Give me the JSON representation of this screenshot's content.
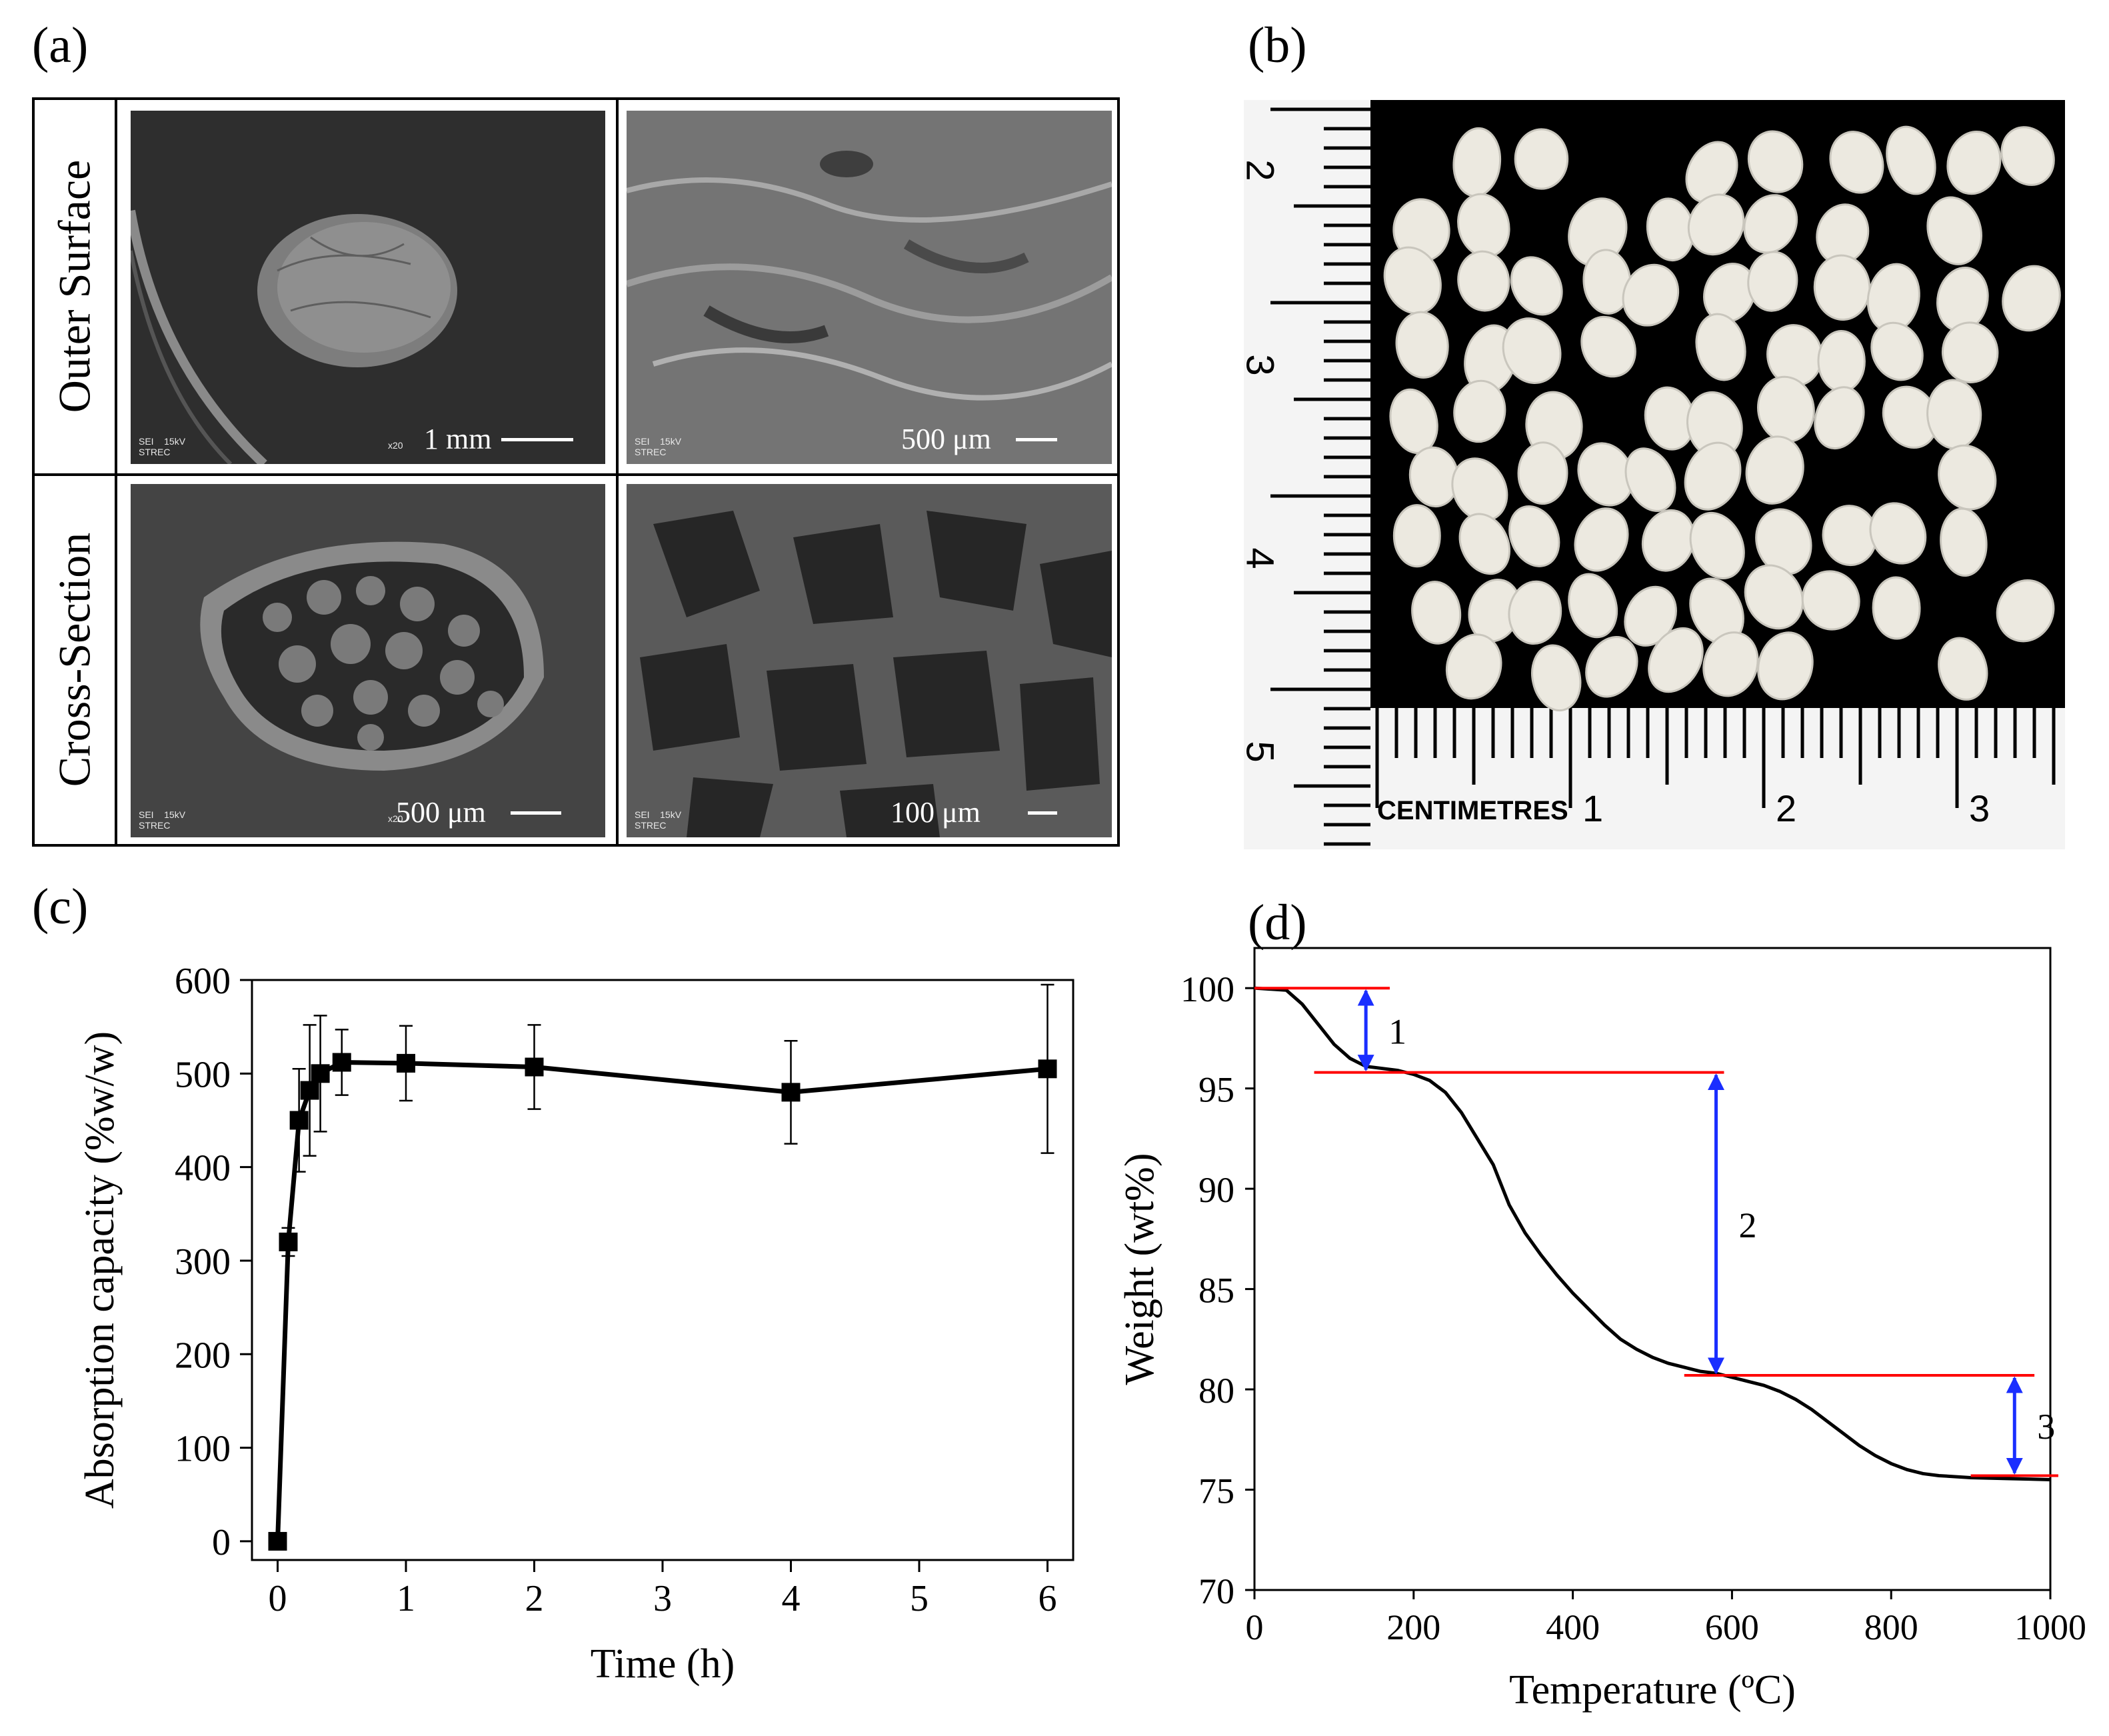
{
  "panels": {
    "a": {
      "letter": "(a)",
      "rows": [
        {
          "label": "Outer Surface",
          "cells": [
            {
              "scale_text": "1 mm",
              "mag": "x20",
              "foot": "SEI    15kV\nSTREC"
            },
            {
              "scale_text": "500 μm",
              "mag": "",
              "foot": "SEI    15kV\nSTREC"
            }
          ]
        },
        {
          "label": "Cross-Section",
          "cells": [
            {
              "scale_text": "500 μm",
              "mag": "x20",
              "foot": "SEI    15kV\nSTREC"
            },
            {
              "scale_text": "100 μm",
              "mag": "",
              "foot": "SEI    15kV\nSTREC"
            }
          ]
        }
      ]
    },
    "b": {
      "letter": "(b)",
      "ruler": {
        "vertical_numbers": [
          "2",
          "3",
          "4",
          "5"
        ],
        "horizontal_label": "CENTIMETRES",
        "horizontal_numbers": [
          "1",
          "2",
          "3"
        ]
      }
    },
    "c": {
      "letter": "(c)"
    },
    "d": {
      "letter": "(d)"
    }
  },
  "chart_data": [
    {
      "panel": "c",
      "type": "line",
      "xlabel": "Time (h)",
      "ylabel": "Absorption capacity (%w/w)",
      "xlim": [
        -0.2,
        6.2
      ],
      "ylim": [
        -20,
        600
      ],
      "xticks": [
        0,
        1,
        2,
        3,
        4,
        5,
        6
      ],
      "yticks": [
        0,
        100,
        200,
        300,
        400,
        500,
        600
      ],
      "marker": "square",
      "color": "#000000",
      "points": [
        {
          "x": 0,
          "y": 0,
          "err": 0
        },
        {
          "x": 0.083,
          "y": 320,
          "err": 15
        },
        {
          "x": 0.167,
          "y": 450,
          "err": 55
        },
        {
          "x": 0.25,
          "y": 482,
          "err": 70
        },
        {
          "x": 0.333,
          "y": 500,
          "err": 62
        },
        {
          "x": 0.5,
          "y": 512,
          "err": 35
        },
        {
          "x": 1,
          "y": 511,
          "err": 40
        },
        {
          "x": 2,
          "y": 507,
          "err": 45
        },
        {
          "x": 4,
          "y": 480,
          "err": 55
        },
        {
          "x": 6,
          "y": 505,
          "err": 90
        }
      ]
    },
    {
      "panel": "d",
      "type": "line",
      "xlabel": "Temperature (ºC)",
      "ylabel": "Weight (wt%)",
      "xlim": [
        0,
        1000
      ],
      "ylim": [
        70,
        102
      ],
      "xticks": [
        0,
        200,
        400,
        600,
        800,
        1000
      ],
      "yticks": [
        70,
        75,
        80,
        85,
        90,
        95,
        100
      ],
      "color": "#000000",
      "curve": [
        [
          0,
          100
        ],
        [
          40,
          99.9
        ],
        [
          60,
          99.2
        ],
        [
          80,
          98.2
        ],
        [
          100,
          97.2
        ],
        [
          120,
          96.5
        ],
        [
          140,
          96.1
        ],
        [
          160,
          96.0
        ],
        [
          180,
          95.9
        ],
        [
          200,
          95.7
        ],
        [
          220,
          95.4
        ],
        [
          240,
          94.8
        ],
        [
          260,
          93.8
        ],
        [
          280,
          92.5
        ],
        [
          300,
          91.2
        ],
        [
          320,
          89.2
        ],
        [
          340,
          87.8
        ],
        [
          360,
          86.7
        ],
        [
          380,
          85.7
        ],
        [
          400,
          84.8
        ],
        [
          420,
          84.0
        ],
        [
          440,
          83.2
        ],
        [
          460,
          82.5
        ],
        [
          480,
          82.0
        ],
        [
          500,
          81.6
        ],
        [
          520,
          81.3
        ],
        [
          540,
          81.1
        ],
        [
          560,
          80.9
        ],
        [
          580,
          80.8
        ],
        [
          600,
          80.6
        ],
        [
          620,
          80.4
        ],
        [
          640,
          80.2
        ],
        [
          660,
          79.9
        ],
        [
          680,
          79.5
        ],
        [
          700,
          79.0
        ],
        [
          720,
          78.4
        ],
        [
          740,
          77.8
        ],
        [
          760,
          77.2
        ],
        [
          780,
          76.7
        ],
        [
          800,
          76.3
        ],
        [
          820,
          76.0
        ],
        [
          840,
          75.8
        ],
        [
          860,
          75.7
        ],
        [
          900,
          75.6
        ],
        [
          950,
          75.55
        ],
        [
          1000,
          75.5
        ]
      ],
      "reference_lines": [
        {
          "y": 100.0,
          "x_from": 0,
          "x_to": 170
        },
        {
          "y": 95.8,
          "x_from": 75,
          "x_to": 590
        },
        {
          "y": 80.7,
          "x_from": 540,
          "x_to": 980
        },
        {
          "y": 75.7,
          "x_from": 900,
          "x_to": 1010
        }
      ],
      "steps": [
        {
          "label": "1",
          "x": 140,
          "y_top": 100.0,
          "y_bottom": 95.8
        },
        {
          "label": "2",
          "x": 580,
          "y_top": 95.8,
          "y_bottom": 80.7
        },
        {
          "label": "3",
          "x": 955,
          "y_top": 80.7,
          "y_bottom": 75.7
        }
      ],
      "colors": {
        "reference": "#ff0000",
        "arrow": "#1a2eff"
      }
    }
  ]
}
